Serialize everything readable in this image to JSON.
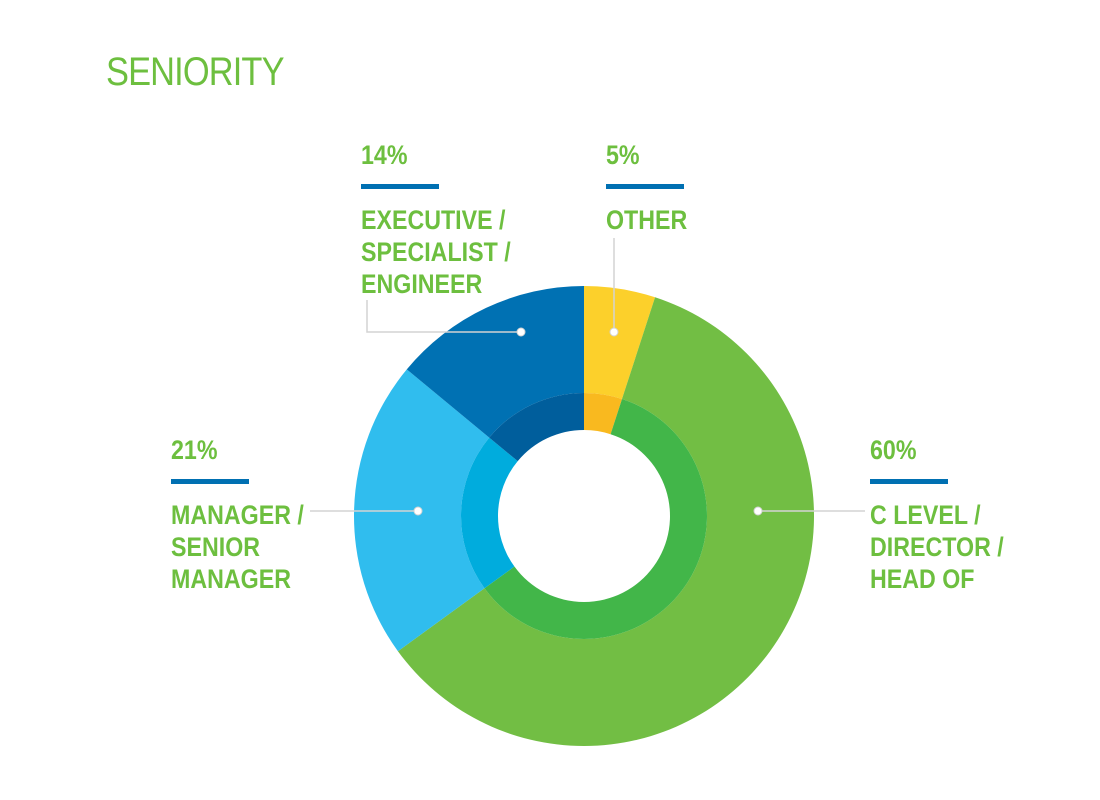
{
  "chart_data": {
    "type": "pie",
    "style": "donut",
    "title": "SENIORITY",
    "slices": [
      {
        "label": "OTHER",
        "value": 5,
        "value_label": "5%",
        "color": "#fcd02b",
        "inner_color": "#f9b91f"
      },
      {
        "label": "C LEVEL /\nDIRECTOR /\nHEAD OF",
        "value": 60,
        "value_label": "60%",
        "color": "#72be44",
        "inner_color": "#42b649"
      },
      {
        "label": "MANAGER /\nSENIOR\nMANAGER",
        "value": 21,
        "value_label": "21%",
        "color": "#30bdee",
        "inner_color": "#00acdd"
      },
      {
        "label": "EXECUTIVE /\nSPECIALIST /\nENGINEER",
        "value": 14,
        "value_label": "14%",
        "color": "#0071b3",
        "inner_color": "#005e9c"
      }
    ]
  },
  "colors": {
    "title": "#6dbf3f",
    "label_text": "#6dbf3f",
    "rule": "#0070b2",
    "leader_line": "#d3d3d3",
    "background": "#ffffff"
  }
}
